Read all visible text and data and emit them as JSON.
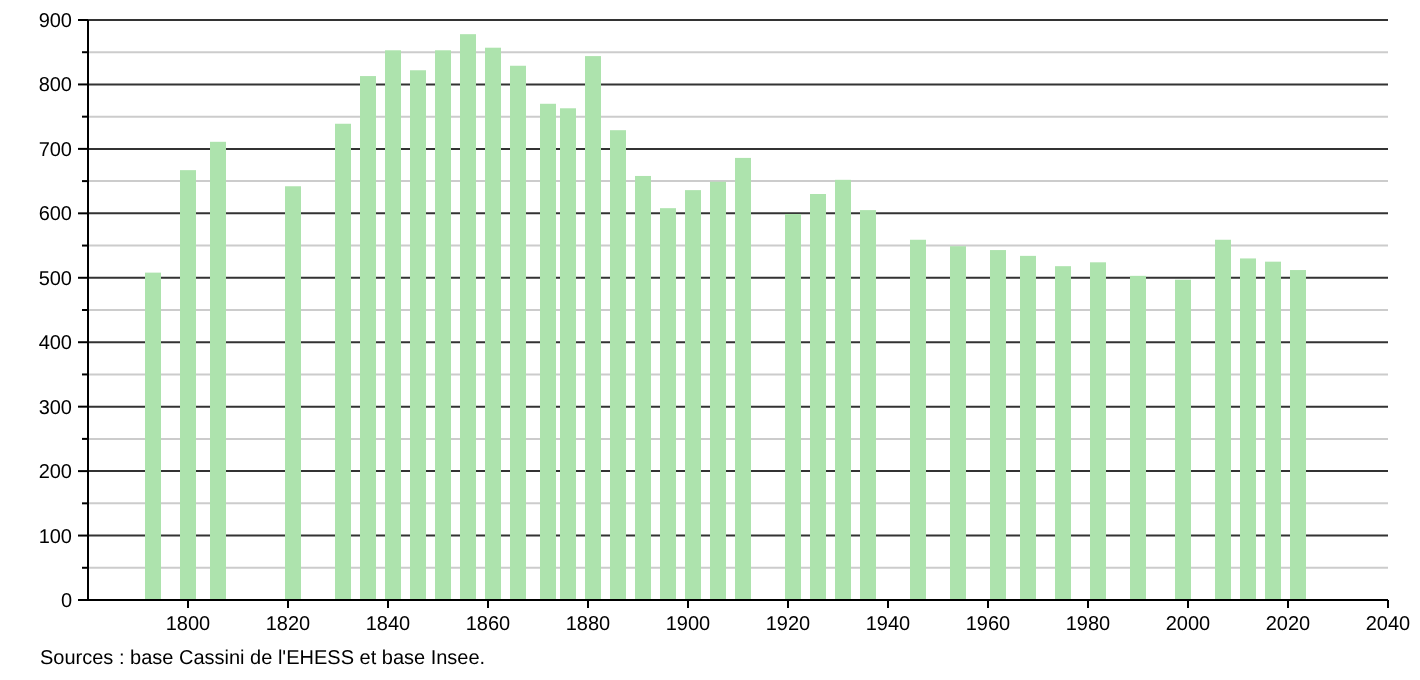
{
  "chart_data": {
    "type": "bar",
    "x": [
      1793,
      1800,
      1806,
      1821,
      1831,
      1836,
      1841,
      1846,
      1851,
      1856,
      1861,
      1866,
      1872,
      1876,
      1881,
      1886,
      1891,
      1896,
      1901,
      1906,
      1911,
      1921,
      1926,
      1931,
      1936,
      1946,
      1954,
      1962,
      1968,
      1975,
      1982,
      1990,
      1999,
      2007,
      2012,
      2017,
      2022
    ],
    "values": [
      508,
      667,
      711,
      642,
      739,
      813,
      853,
      822,
      853,
      878,
      857,
      829,
      770,
      763,
      844,
      729,
      658,
      608,
      636,
      649,
      686,
      599,
      630,
      652,
      605,
      559,
      549,
      543,
      534,
      518,
      524,
      503,
      497,
      559,
      530,
      525,
      512
    ],
    "color": "#ade3ad",
    "xlim": [
      1780,
      2040
    ],
    "xticks": [
      1800,
      1820,
      1840,
      1860,
      1880,
      1900,
      1920,
      1940,
      1960,
      1980,
      2000,
      2020,
      2040
    ],
    "ylim": [
      0,
      900
    ],
    "yticks": [
      0,
      {
        "value": 50,
        "label": null
      },
      100,
      {
        "value": 150,
        "label": null
      },
      200,
      {
        "value": 250,
        "label": null
      },
      300,
      {
        "value": 350,
        "label": null
      },
      400,
      {
        "value": 450,
        "label": null
      },
      500,
      {
        "value": 550,
        "label": null
      },
      600,
      {
        "value": 650,
        "label": null
      },
      700,
      {
        "value": 750,
        "label": null
      },
      800,
      {
        "value": 850,
        "label": null
      },
      900
    ],
    "grid": true,
    "annotations": [
      "Sources : base Cassini de l'EHESS et base Insee."
    ]
  }
}
